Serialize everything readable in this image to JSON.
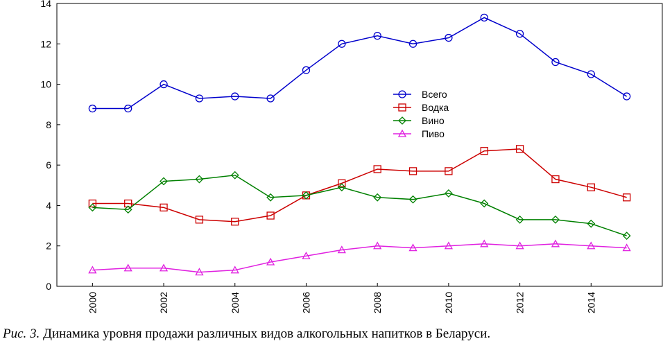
{
  "chart_data": {
    "type": "line",
    "x": [
      2000,
      2001,
      2002,
      2003,
      2004,
      2005,
      2006,
      2007,
      2008,
      2009,
      2010,
      2011,
      2012,
      2013,
      2014,
      2015
    ],
    "series": [
      {
        "name": "Всего",
        "color": "#0000cc",
        "marker": "circle",
        "values": [
          8.8,
          8.8,
          10.0,
          9.3,
          9.4,
          9.3,
          10.7,
          12.0,
          12.4,
          12.0,
          12.3,
          13.3,
          12.5,
          11.1,
          10.5,
          9.4
        ]
      },
      {
        "name": "Водка",
        "color": "#cc0000",
        "marker": "square",
        "values": [
          4.1,
          4.1,
          3.9,
          3.3,
          3.2,
          3.5,
          4.5,
          5.1,
          5.8,
          5.7,
          5.7,
          6.7,
          6.8,
          5.3,
          4.9,
          4.4
        ]
      },
      {
        "name": "Вино",
        "color": "#008000",
        "marker": "diamond",
        "values": [
          3.9,
          3.8,
          5.2,
          5.3,
          5.5,
          4.4,
          4.5,
          4.9,
          4.4,
          4.3,
          4.6,
          4.1,
          3.3,
          3.3,
          3.1,
          2.5
        ]
      },
      {
        "name": "Пиво",
        "color": "#e020e0",
        "marker": "triangle",
        "values": [
          0.8,
          0.9,
          0.9,
          0.7,
          0.8,
          1.2,
          1.5,
          1.8,
          2.0,
          1.9,
          2.0,
          2.1,
          2.0,
          2.1,
          2.0,
          1.9
        ]
      }
    ],
    "xlim": [
      1999,
      2016
    ],
    "xticks": [
      2000,
      2002,
      2004,
      2006,
      2008,
      2010,
      2012,
      2014
    ],
    "ylim": [
      0,
      14
    ],
    "yticks": [
      0,
      2,
      4,
      6,
      8,
      10,
      12,
      14
    ],
    "legend": "center",
    "caption_label": "Рис. 3.",
    "caption_text": "Динамика уровня продажи различных видов алкогольных напитков в Беларуси."
  }
}
